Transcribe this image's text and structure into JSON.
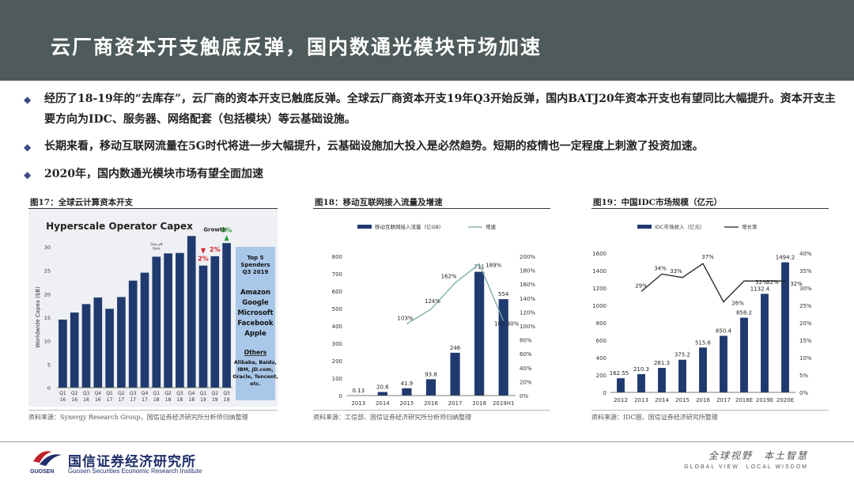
{
  "header": {
    "title": "云厂商资本开支触底反弹，国内数通光模块市场加速"
  },
  "bullets": [
    {
      "text": "经历了18-19年的“去库存”，云厂商的资本开支已触底反弹。全球云厂商资本开支19年Q3开始反弹，国内BATJ20年资本开支也有望同比大幅提升。资本开支主要方向为IDC、服务器、网络配套（包括模块）等云基础设施。"
    },
    {
      "text": "长期来看，移动互联网流量在5G时代将进一步大幅提升，云基础设施加大投入是必然趋势。短期的疫情也一定程度上刺激了投资加速。"
    },
    {
      "text": "2020年，国内数通光模块市场有望全面加速"
    }
  ],
  "colors": {
    "header": "#4f5a5a",
    "bar": "#1f3a6e",
    "line": "#7aa8a8",
    "red": "#d0202a",
    "green": "#2a9a3a",
    "panel": "#a9c7e8"
  },
  "chart_data": [
    {
      "type": "bar",
      "figure_label": "图17：全球云计算资本开支",
      "title": "Hyperscale Operator Capex",
      "ylabel": "Worldwide Capex ($B)",
      "categories": [
        "Q1\n16",
        "Q2\n16",
        "Q3\n16",
        "Q4\n16",
        "Q1\n17",
        "Q2\n17",
        "Q3\n17",
        "Q4\n17",
        "Q1\n18",
        "Q2\n18",
        "Q3\n18",
        "Q4\n18",
        "Q1\n19",
        "Q2\n19",
        "Q3\n19"
      ],
      "values": [
        14.5,
        16,
        17.8,
        19.2,
        16.8,
        19.3,
        22.8,
        24.5,
        27.9,
        28.6,
        28.7,
        32.3,
        26,
        28,
        30.8
      ],
      "ylim": [
        0,
        30
      ],
      "yticks": [
        "0",
        "5",
        "10",
        "15",
        "20",
        "25",
        "30"
      ],
      "annotations": {
        "growth": "Growth",
        "down1": "2%",
        "down2": "2%",
        "up": "8%",
        "one_off": "One-off\nItem"
      },
      "panel": {
        "title": "Top 5\nSpenders\nQ3 2019",
        "companies": [
          "Amazon",
          "Google",
          "Microsoft",
          "Facebook",
          "Apple"
        ],
        "others_title": "Others",
        "others": [
          "Alibaba, Baidu,",
          "IBM, JD.com,",
          "Oracle, Tencent,",
          "etc."
        ]
      },
      "source": "资料来源：Synergy Research Group，国信证券经济研究所分析师归纳整理"
    },
    {
      "type": "bar+line",
      "figure_label": "图18：移动互联网接入流量及增速",
      "legend": [
        "移动互联网接入流量（亿GB）",
        "增速"
      ],
      "categories": [
        "2013",
        "2014",
        "2015",
        "2016",
        "2017",
        "2018",
        "2019H1"
      ],
      "values": [
        0.13,
        20.6,
        41.9,
        93.8,
        246,
        711,
        554
      ],
      "value_labels": [
        "0.13",
        "20.6",
        "41.9",
        "93.8",
        "246",
        "711",
        "554"
      ],
      "growth": [
        null,
        null,
        103,
        124,
        162,
        189,
        107.3
      ],
      "growth_labels": [
        "",
        "",
        "103%",
        "124%",
        "162%",
        "189%",
        "107.30%"
      ],
      "ylim": [
        0,
        800
      ],
      "y2lim": [
        0,
        200
      ],
      "yticks": [
        "0",
        "100",
        "200",
        "300",
        "400",
        "500",
        "600",
        "700",
        "800"
      ],
      "y2ticks": [
        "0%",
        "20%",
        "40%",
        "60%",
        "80%",
        "100%",
        "120%",
        "140%",
        "160%",
        "180%",
        "200%"
      ],
      "source": "资料来源：工信部、国信证券经济研究所分析师归纳整理"
    },
    {
      "type": "bar+line",
      "figure_label": "图19：中国IDC市场规模（亿元）",
      "legend": [
        "IDC市场收入（亿元）",
        "增长率"
      ],
      "categories": [
        "2012",
        "2013",
        "2014",
        "2015",
        "2016",
        "2017",
        "2018E",
        "2019E",
        "2020E"
      ],
      "values": [
        162.55,
        210.3,
        281.3,
        375.2,
        515.6,
        650.4,
        858.2,
        1132.4,
        1494.2
      ],
      "value_labels": [
        "162.55",
        "210.3",
        "281.3",
        "375.2",
        "515.6",
        "650.4",
        "858.2",
        "1132.4",
        "1494.2"
      ],
      "growth": [
        null,
        29,
        34,
        33,
        37,
        26,
        32,
        32,
        32
      ],
      "growth_labels": [
        "",
        "29%",
        "34%",
        "33%",
        "37%",
        "26%",
        "32%",
        "32%",
        "32%"
      ],
      "ylim": [
        0,
        1600
      ],
      "y2lim": [
        0,
        40
      ],
      "yticks": [
        "0",
        "200",
        "400",
        "600",
        "800",
        "1000",
        "1200",
        "1400",
        "1600"
      ],
      "y2ticks": [
        "0%",
        "5%",
        "10%",
        "15%",
        "20%",
        "25%",
        "30%",
        "35%",
        "40%"
      ],
      "source": "资料来源：IDC圈，国信证券经济研究所整理"
    }
  ],
  "footer": {
    "company_cn": "国信证券经济研究所",
    "company_en": "Guosen Securities Economic Research Institute",
    "abbr": "GUOSEN",
    "slogan_cn": "全球视野　本土智慧",
    "slogan_en": "GLOBAL VIEW　LOCAL WISDOM"
  }
}
